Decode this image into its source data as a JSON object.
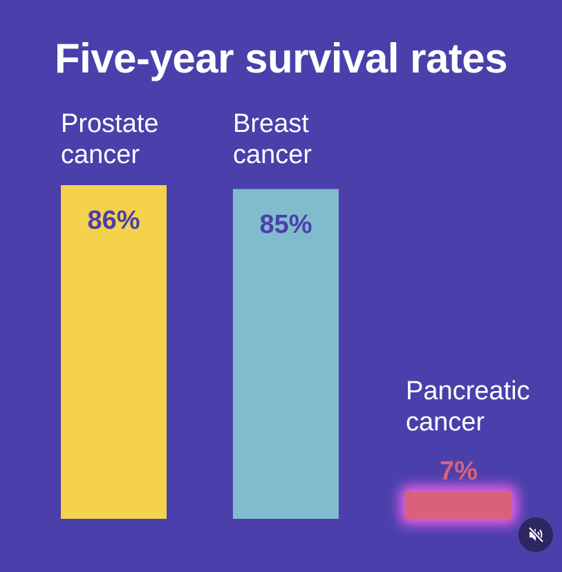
{
  "colors": {
    "background": "#4b3fab",
    "title": "#ffffff",
    "label": "#ffffff",
    "bar_value_text": "#4b3fab",
    "glow": "#ef63e8",
    "mute_button_bg": "#2e2660"
  },
  "chart_data": {
    "type": "bar",
    "title": "Five-year survival rates",
    "categories": [
      {
        "name": [
          "Prostate",
          "cancer"
        ],
        "value": 86,
        "label": "86%",
        "color": "#f5d24b",
        "label_color": "#4b3fab"
      },
      {
        "name": [
          "Breast",
          "cancer"
        ],
        "value": 85,
        "label": "85%",
        "color": "#80bccd",
        "label_color": "#4b3fab"
      },
      {
        "name": [
          "Pancreatic",
          "cancer"
        ],
        "value": 7,
        "label": "7%",
        "color": "#d9627a",
        "label_color": "#d9627a",
        "highlighted": true
      }
    ],
    "unit": "%",
    "ylim": [
      0,
      86
    ],
    "grid": false,
    "legend": "none"
  },
  "controls": {
    "mute_icon": "speaker-muted-icon"
  }
}
